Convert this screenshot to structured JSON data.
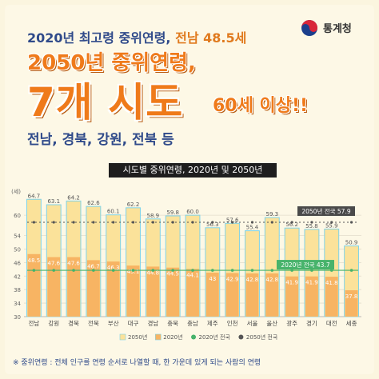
{
  "logo": {
    "text": "통계청"
  },
  "headline": {
    "line1_prefix": "2020년 최고령 중위연령, ",
    "line1_highlight": "전남 48.5세",
    "line2": "2050년 중위연령,",
    "line3": "7개 시도",
    "line3_suffix": "60세 이상!!",
    "line4": "전남, 경북, 강원, 전북 등"
  },
  "colors": {
    "bar_2050": "#fbe29a",
    "bar_2020": "#f7b463",
    "bar_edge": "#7fd3e8",
    "line_2020": "#47b36b",
    "line_2050": "#555555",
    "accent_orange": "#ef7a1a",
    "accent_navy": "#2f4a8a"
  },
  "footnote": "※ 중위연령 : 전체 인구를 연령 순서로 나열할 때, 한 가운데 있게 되는 사람의 연령",
  "chart_data": {
    "type": "bar",
    "title": "시도별 중위연령, 2020년 및 2050년",
    "ylabel": "(세)",
    "ylim": [
      30,
      65
    ],
    "yticks": [
      30,
      34,
      38,
      42,
      46,
      50,
      54,
      60
    ],
    "categories": [
      "전남",
      "강원",
      "경북",
      "전북",
      "부산",
      "대구",
      "경남",
      "충북",
      "충남",
      "제주",
      "인천",
      "서울",
      "울산",
      "광주",
      "경기",
      "대전",
      "세종"
    ],
    "series": [
      {
        "name": "2050년",
        "values": [
          64.7,
          63.1,
          64.2,
          62.6,
          60.1,
          62.2,
          58.9,
          59.8,
          60.0,
          56.3,
          57.6,
          55.4,
          59.3,
          56.2,
          55.8,
          55.9,
          50.9
        ]
      },
      {
        "name": "2020년",
        "values": [
          48.5,
          47.6,
          47.6,
          46.7,
          46.3,
          45.1,
          44.8,
          44.5,
          44.1,
          43.0,
          42.9,
          42.8,
          42.8,
          41.9,
          41.9,
          41.8,
          37.8
        ]
      }
    ],
    "reference_lines": [
      {
        "name": "2020년 전국",
        "value": 43.7,
        "label": "2020년 전국 43.7"
      },
      {
        "name": "2050년 전국",
        "value": 57.9,
        "label": "2050년 전국 57.9"
      }
    ],
    "legend": [
      "2050년",
      "2020년",
      "2020년 전국",
      "2050년 전국"
    ],
    "legend_position": "bottom"
  }
}
